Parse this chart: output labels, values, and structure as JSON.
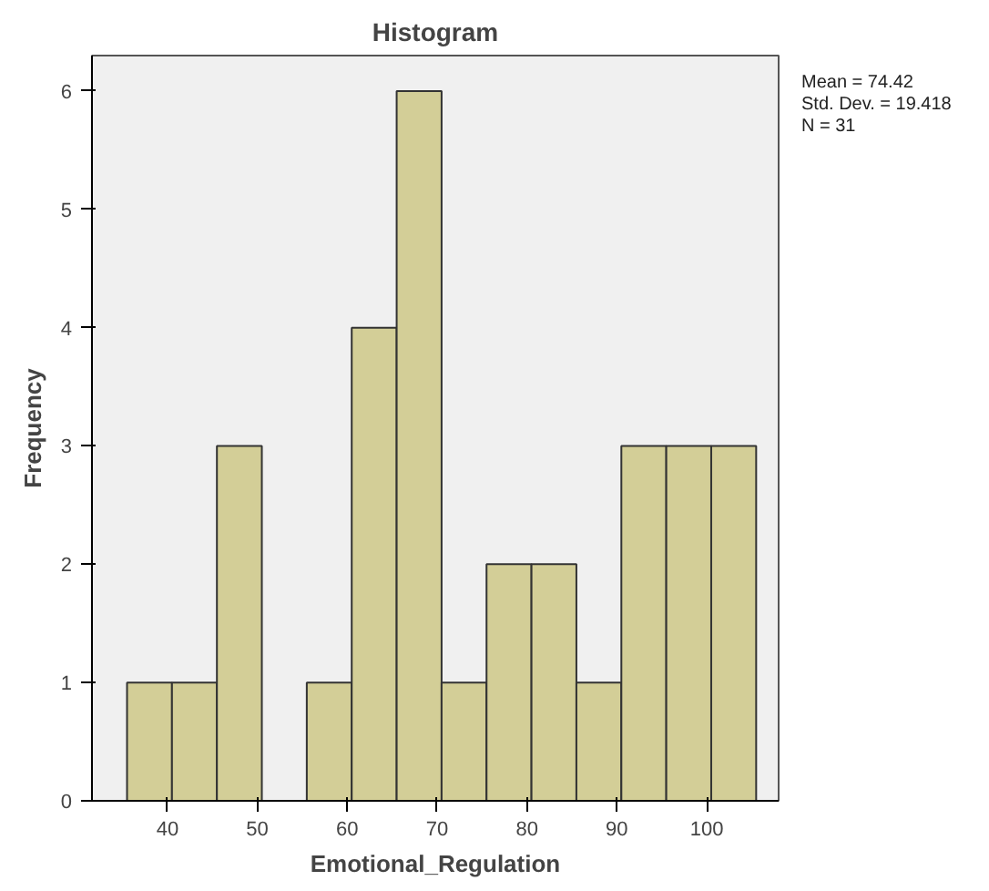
{
  "chart_data": {
    "type": "histogram",
    "title": "Histogram",
    "xlabel": "Emotional_Regulation",
    "ylabel": "Frequency",
    "bins": [
      35.5,
      40.5,
      45.5,
      50.5,
      55.5,
      60.5,
      65.5,
      70.5,
      75.5,
      80.5,
      85.5,
      90.5,
      95.5,
      100.5,
      105.5
    ],
    "values": [
      1,
      1,
      3,
      0,
      1,
      4,
      6,
      1,
      2,
      2,
      1,
      3,
      3,
      3
    ],
    "color": "#d3ce97",
    "xlim": [
      31.6,
      108
    ],
    "xticks": [
      40,
      50,
      60,
      70,
      80,
      90,
      100
    ],
    "ylim": [
      0,
      6.3
    ],
    "yticks": [
      0,
      1,
      2,
      3,
      4,
      5,
      6
    ],
    "annotations": [
      "Mean = 74.42",
      "Std. Dev. = 19.418",
      "N = 31"
    ],
    "grid": false
  }
}
